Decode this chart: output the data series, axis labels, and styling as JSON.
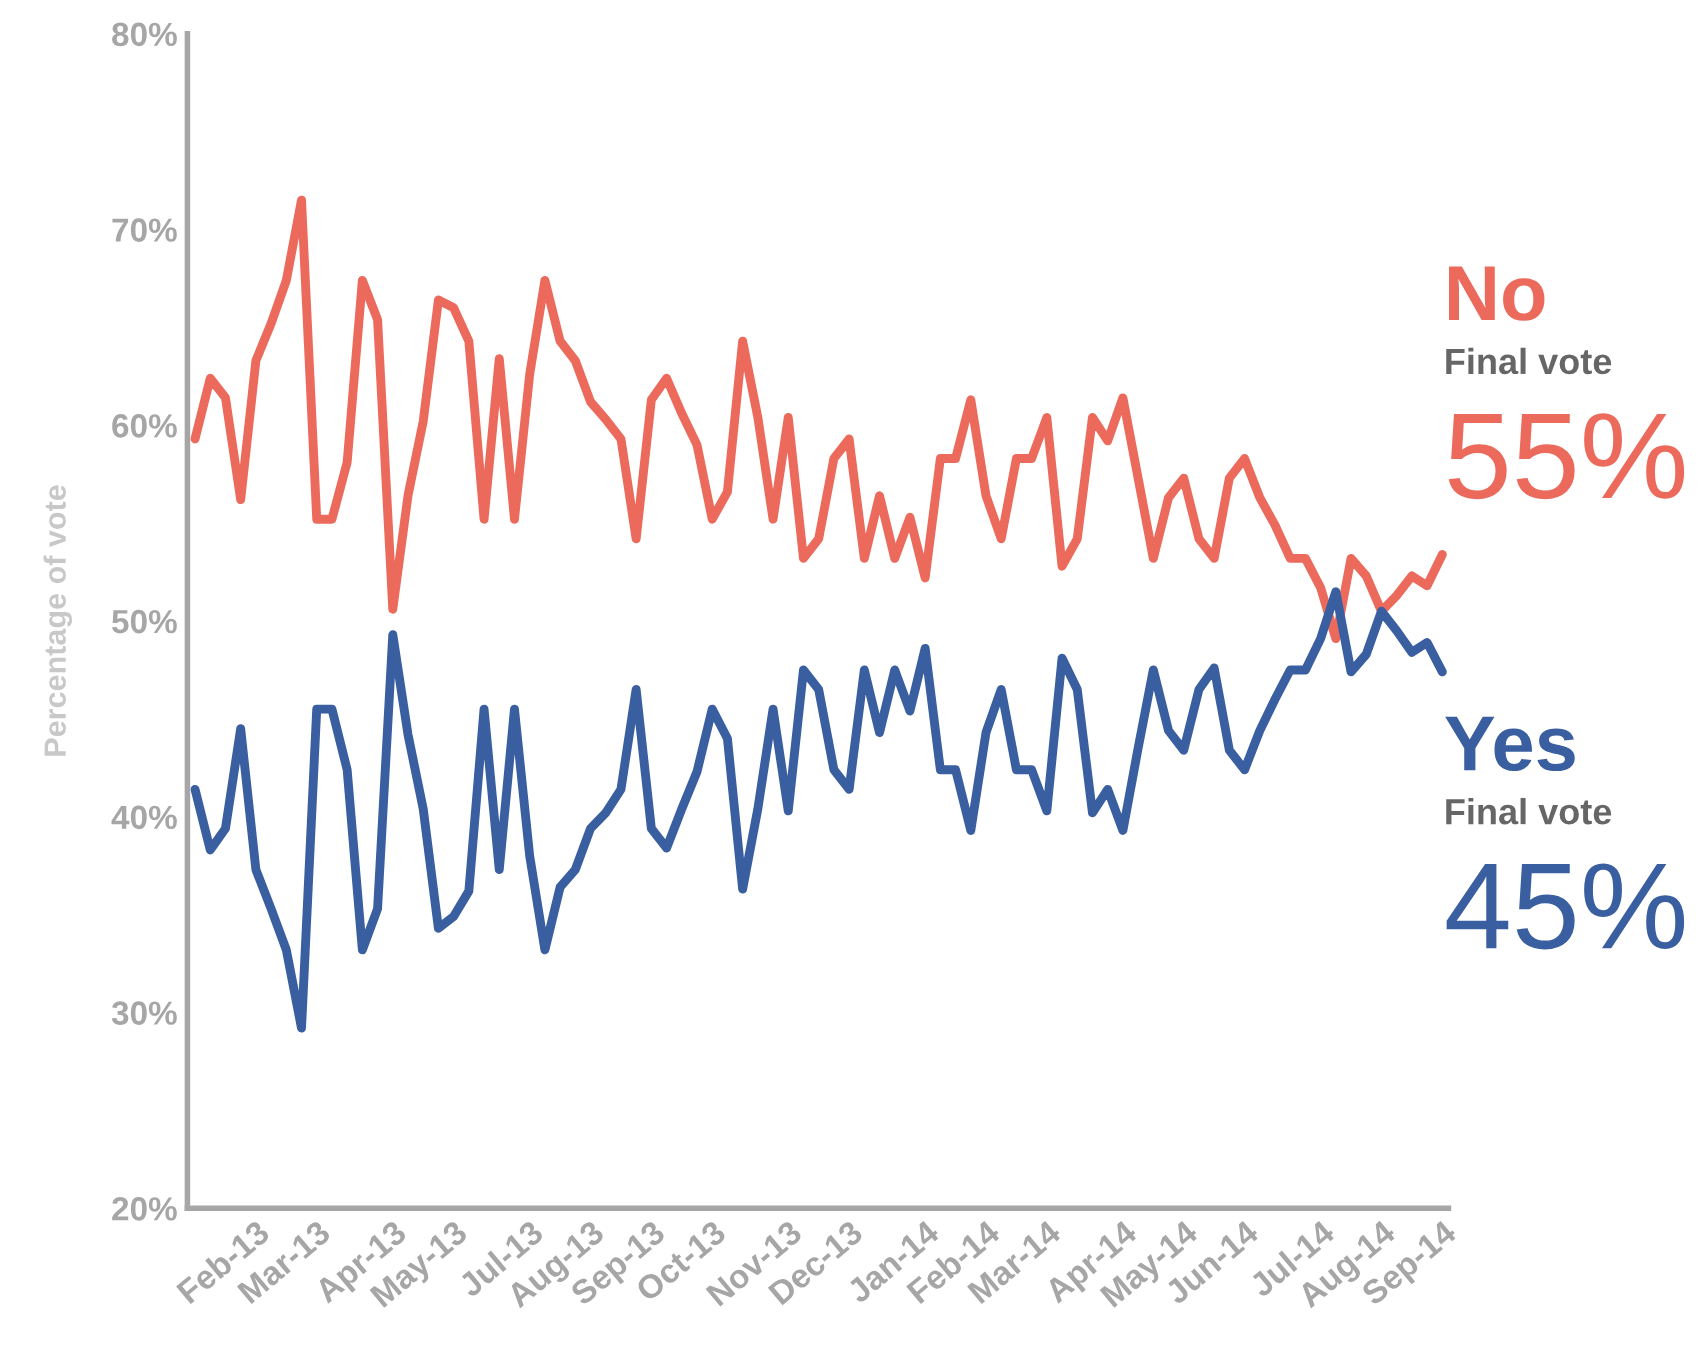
{
  "chart_data": {
    "type": "line",
    "ylabel": "Percentage of vote",
    "ylim": [
      20,
      80
    ],
    "grid": false,
    "legend": false,
    "marker": "none",
    "line_style": "solid",
    "yticks": [
      {
        "value": 20,
        "label": "20%"
      },
      {
        "value": 30,
        "label": "30%"
      },
      {
        "value": 40,
        "label": "40%"
      },
      {
        "value": 50,
        "label": "50%"
      },
      {
        "value": 60,
        "label": "60%"
      },
      {
        "value": 70,
        "label": "70%"
      },
      {
        "value": 80,
        "label": "80%"
      }
    ],
    "categories": [
      null,
      null,
      null,
      null,
      "Feb-13",
      null,
      null,
      null,
      "Mar-13",
      null,
      null,
      null,
      null,
      "Apr-13",
      null,
      null,
      null,
      "May-13",
      null,
      null,
      null,
      null,
      "Jul-13",
      null,
      null,
      null,
      "Aug-13",
      null,
      null,
      null,
      "Sep-13",
      null,
      null,
      null,
      "Oct-13",
      null,
      null,
      null,
      null,
      "Nov-13",
      null,
      null,
      null,
      "Dec-13",
      null,
      null,
      null,
      null,
      "Jan-14",
      null,
      null,
      null,
      "Feb-14",
      null,
      null,
      null,
      "Mar-14",
      null,
      null,
      null,
      null,
      "Apr-14",
      null,
      null,
      null,
      "May-14",
      null,
      null,
      null,
      "Jun-14",
      null,
      null,
      null,
      null,
      "Jul-14",
      null,
      null,
      null,
      "Aug-14",
      null,
      null,
      null,
      "Sep-14"
    ],
    "series": [
      {
        "name": "No",
        "color": "#ec6a5c",
        "values": [
          59.3,
          62.4,
          61.4,
          56.2,
          63.3,
          65.2,
          67.4,
          71.5,
          55.2,
          55.2,
          58.1,
          67.4,
          65.4,
          50.6,
          56.4,
          60.2,
          66.4,
          66.0,
          64.3,
          55.2,
          63.4,
          55.2,
          62.6,
          67.4,
          64.3,
          63.3,
          61.2,
          60.3,
          59.3,
          54.2,
          61.3,
          62.4,
          60.6,
          59.0,
          55.2,
          56.6,
          64.3,
          60.4,
          55.2,
          60.4,
          53.2,
          54.2,
          58.3,
          59.3,
          53.2,
          56.4,
          53.2,
          55.3,
          52.2,
          58.3,
          58.3,
          61.3,
          56.4,
          54.2,
          58.3,
          58.3,
          60.4,
          52.8,
          54.2,
          60.4,
          59.2,
          61.4,
          57.3,
          53.2,
          56.3,
          57.3,
          54.2,
          53.2,
          57.3,
          58.3,
          56.3,
          54.9,
          53.2,
          53.2,
          51.7,
          49.1,
          53.2,
          52.3,
          50.5,
          51.3,
          52.3,
          51.8,
          53.4
        ]
      },
      {
        "name": "Yes",
        "color": "#3a5fa0",
        "values": [
          41.4,
          38.3,
          39.4,
          44.5,
          37.3,
          35.3,
          33.2,
          29.2,
          45.5,
          45.5,
          42.4,
          33.2,
          35.3,
          49.3,
          44.2,
          40.4,
          34.3,
          34.9,
          36.2,
          45.5,
          37.3,
          45.5,
          38.0,
          33.2,
          36.4,
          37.3,
          39.4,
          40.2,
          41.4,
          46.5,
          39.4,
          38.4,
          40.4,
          42.3,
          45.5,
          44.0,
          36.3,
          40.4,
          45.5,
          40.3,
          47.5,
          46.5,
          42.4,
          41.4,
          47.5,
          44.3,
          47.5,
          45.4,
          48.6,
          42.4,
          42.4,
          39.3,
          44.3,
          46.5,
          42.4,
          42.4,
          40.3,
          48.1,
          46.5,
          40.2,
          41.4,
          39.3,
          43.5,
          47.5,
          44.4,
          43.4,
          46.5,
          47.6,
          43.4,
          42.4,
          44.4,
          46.0,
          47.5,
          47.5,
          49.1,
          51.5,
          47.4,
          48.3,
          50.5,
          49.5,
          48.4,
          48.9,
          47.4
        ]
      }
    ],
    "annotations": [
      "Final vote",
      "55%",
      "Final vote",
      "45%"
    ]
  }
}
